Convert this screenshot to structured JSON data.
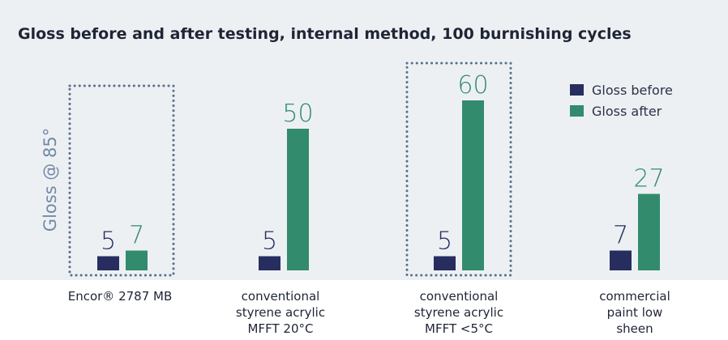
{
  "colors": {
    "background_panel": "#edf0f3",
    "gloss_before": "#272e5f",
    "gloss_after": "#328b6d",
    "highlight_box": "#59708c",
    "ylabel": "#7389a5"
  },
  "chart_data": {
    "type": "bar",
    "title": "Gloss before and after testing, internal method, 100 burnishing cycles",
    "xlabel": "",
    "ylabel": "Gloss @ 85°",
    "ylim": [
      0,
      68
    ],
    "grid": false,
    "legend_position": "top-right",
    "categories": [
      [
        "Encor® 2787 MB"
      ],
      [
        "conventional",
        "styrene acrylic",
        "MFFT 20°C"
      ],
      [
        "conventional",
        "styrene acrylic",
        "MFFT <5°C"
      ],
      [
        "commercial",
        "paint low",
        "sheen"
      ]
    ],
    "highlighted_categories": [
      0,
      2
    ],
    "series": [
      {
        "name": "Gloss before",
        "color_key": "gloss_before",
        "values": [
          5,
          5,
          5,
          7
        ]
      },
      {
        "name": "Gloss after",
        "color_key": "gloss_after",
        "values": [
          7,
          50,
          60,
          27
        ]
      }
    ]
  }
}
